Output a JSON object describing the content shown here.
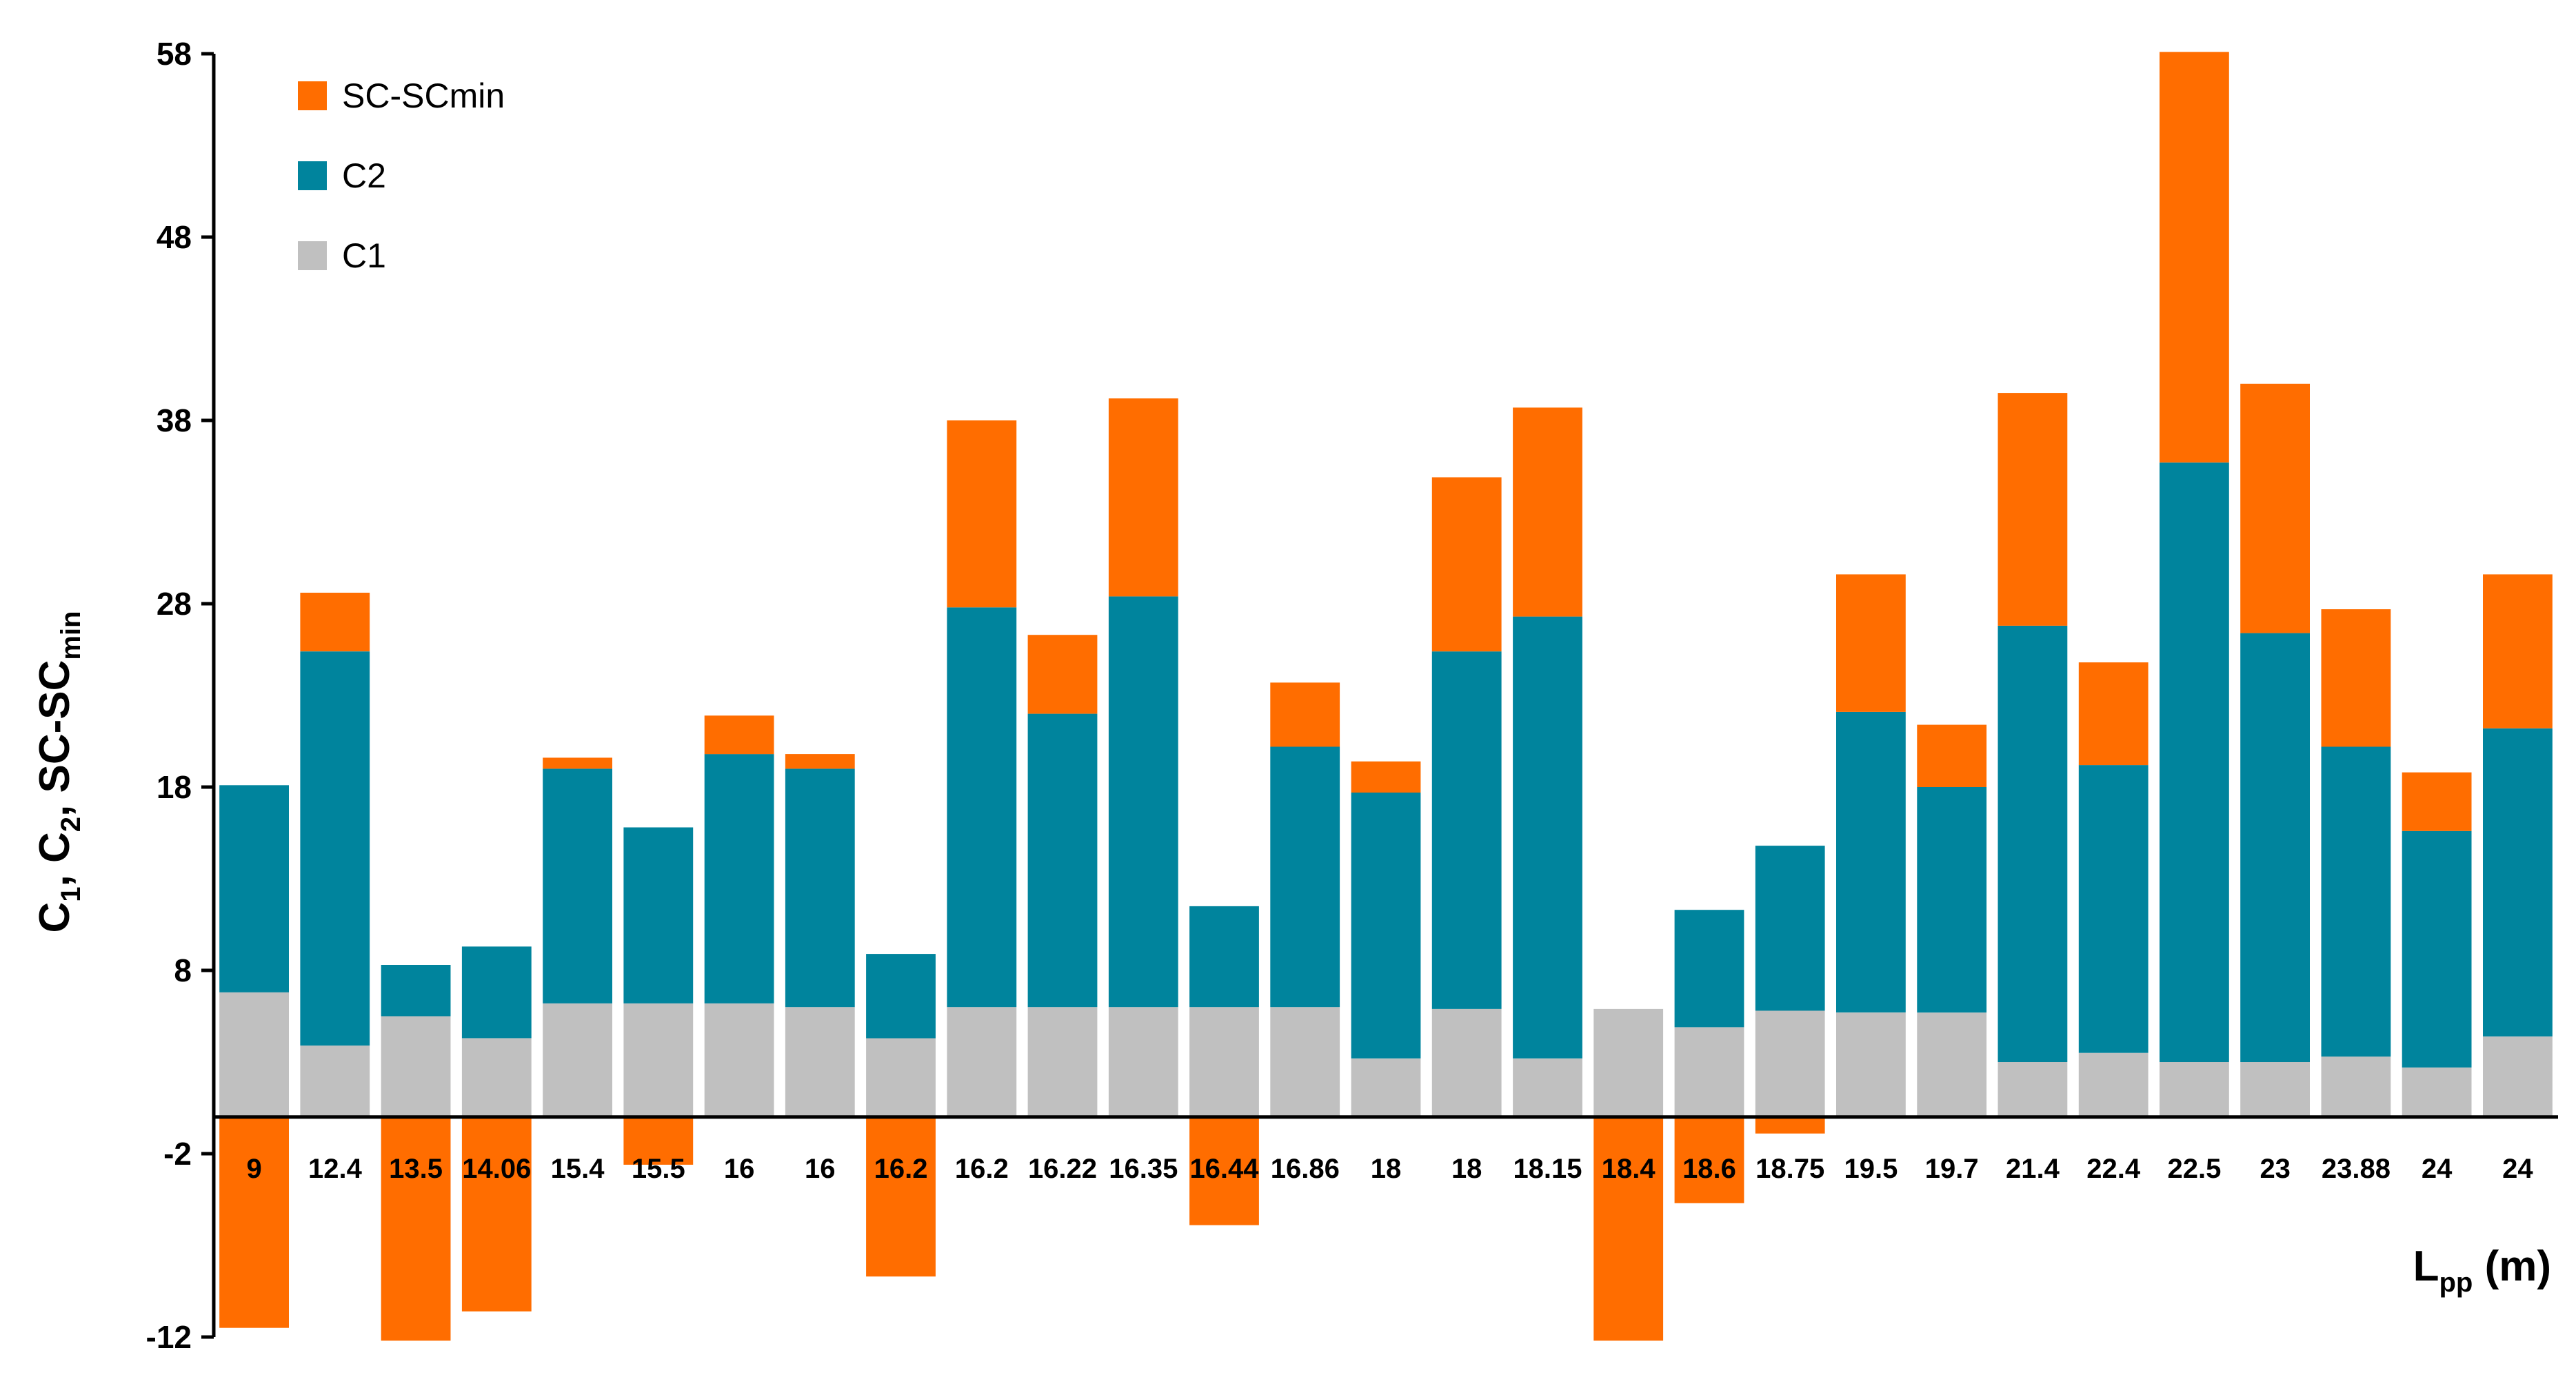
{
  "chart_data": {
    "type": "bar",
    "stacked": true,
    "xlabel": "L",
    "xlabel_sub": "pp",
    "xlabel_unit": " (m)",
    "ylabel_parts": [
      "C",
      "1",
      ", C",
      "2",
      ", SC-SC",
      "min"
    ],
    "ylim": [
      -12,
      58
    ],
    "yticks": [
      -12,
      -2,
      8,
      18,
      28,
      38,
      48,
      58
    ],
    "grid": false,
    "legend_position": "top-left",
    "categories": [
      "9",
      "12.4",
      "13.5",
      "14.06",
      "15.4",
      "15.5",
      "16",
      "16",
      "16.2",
      "16.2",
      "16.22",
      "16.35",
      "16.44",
      "16.86",
      "18",
      "18",
      "18.15",
      "18.4",
      "18.6",
      "18.75",
      "19.5",
      "19.7",
      "21.4",
      "22.4",
      "22.5",
      "23",
      "23.88",
      "24",
      "24"
    ],
    "legend": [
      "SC-SCmin",
      "C2",
      "C1"
    ],
    "series": [
      {
        "name": "C1",
        "color": "#c0c0c0",
        "values": [
          6.8,
          3.9,
          5.5,
          4.3,
          6.2,
          6.2,
          6.2,
          6.0,
          4.3,
          6.0,
          6.0,
          6.0,
          6.0,
          6.0,
          3.2,
          5.9,
          3.2,
          5.9,
          4.9,
          5.8,
          5.7,
          5.7,
          3.0,
          3.5,
          3.0,
          3.0,
          3.3,
          2.7,
          4.4
        ]
      },
      {
        "name": "C2",
        "color": "#00849d",
        "values": [
          11.3,
          21.5,
          2.8,
          5.0,
          12.8,
          9.6,
          13.6,
          13.0,
          4.6,
          21.8,
          16.0,
          22.4,
          5.5,
          14.2,
          14.5,
          19.5,
          24.1,
          0.0,
          6.4,
          9.0,
          16.4,
          12.3,
          23.8,
          15.7,
          32.7,
          23.4,
          16.9,
          12.9,
          16.8
        ]
      },
      {
        "name": "SC-SCmin",
        "color": "#ff6d00",
        "values": [
          -11.5,
          3.2,
          -12.2,
          -10.6,
          0.6,
          -2.6,
          2.1,
          0.8,
          -8.7,
          10.2,
          4.3,
          10.8,
          -5.9,
          3.5,
          1.7,
          9.5,
          11.4,
          -12.2,
          -4.7,
          -0.9,
          7.5,
          3.4,
          12.7,
          5.6,
          22.4,
          13.6,
          7.5,
          3.2,
          8.4
        ]
      }
    ]
  }
}
